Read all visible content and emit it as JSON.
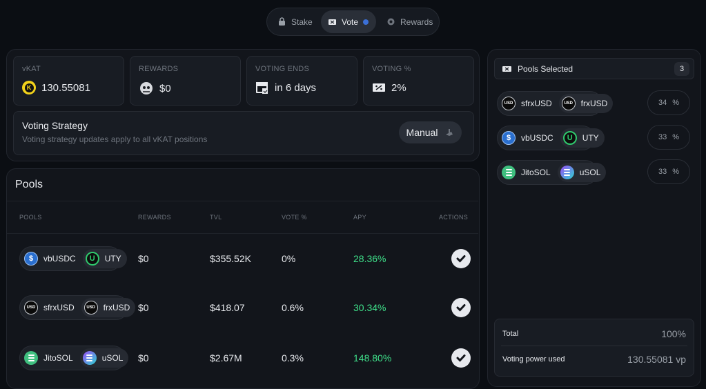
{
  "nav": {
    "tabs": [
      {
        "label": "Stake",
        "icon": "lock-icon"
      },
      {
        "label": "Vote",
        "icon": "ballot-icon",
        "active": true
      },
      {
        "label": "Rewards",
        "icon": "gift-icon"
      }
    ]
  },
  "stats": {
    "vkat": {
      "label": "vKAT",
      "value": "130.55081"
    },
    "rewards": {
      "label": "REWARDS",
      "value": "$0"
    },
    "voting_ends": {
      "label": "VOTING ENDS",
      "value": "in 6 days"
    },
    "voting_pct": {
      "label": "VOTING %",
      "value": "2%"
    }
  },
  "strategy": {
    "title": "Voting Strategy",
    "subtitle": "Voting strategy updates apply to all vKAT positions",
    "mode": "Manual"
  },
  "pools": {
    "title": "Pools",
    "columns": [
      "POOLS",
      "REWARDS",
      "TVL",
      "VOTE %",
      "APY",
      "ACTIONS"
    ],
    "rows": [
      {
        "a": "vbUSDC",
        "b": "UTY",
        "rewards": "$0",
        "tvl": "$355.52K",
        "vote": "0%",
        "apy": "28.36%"
      },
      {
        "a": "sfrxUSD",
        "b": "frxUSD",
        "rewards": "$0",
        "tvl": "$418.07",
        "vote": "0.6%",
        "apy": "30.34%"
      },
      {
        "a": "JitoSOL",
        "b": "uSOL",
        "rewards": "$0",
        "tvl": "$2.67M",
        "vote": "0.3%",
        "apy": "148.80%"
      }
    ]
  },
  "selected": {
    "title": "Pools Selected",
    "count": "3",
    "items": [
      {
        "a": "sfrxUSD",
        "b": "frxUSD",
        "pct": "34",
        "unit": "%"
      },
      {
        "a": "vbUSDC",
        "b": "UTY",
        "pct": "33",
        "unit": "%"
      },
      {
        "a": "JitoSOL",
        "b": "uSOL",
        "pct": "33",
        "unit": "%"
      }
    ],
    "total_label": "Total",
    "total_value": "100%",
    "vp_label": "Voting power used",
    "vp_value": "130.55081 vp"
  },
  "colors": {
    "accent_green": "#3fe08a",
    "accent_blue": "#3b6fd6",
    "vkat_yellow": "#f2d21b"
  }
}
